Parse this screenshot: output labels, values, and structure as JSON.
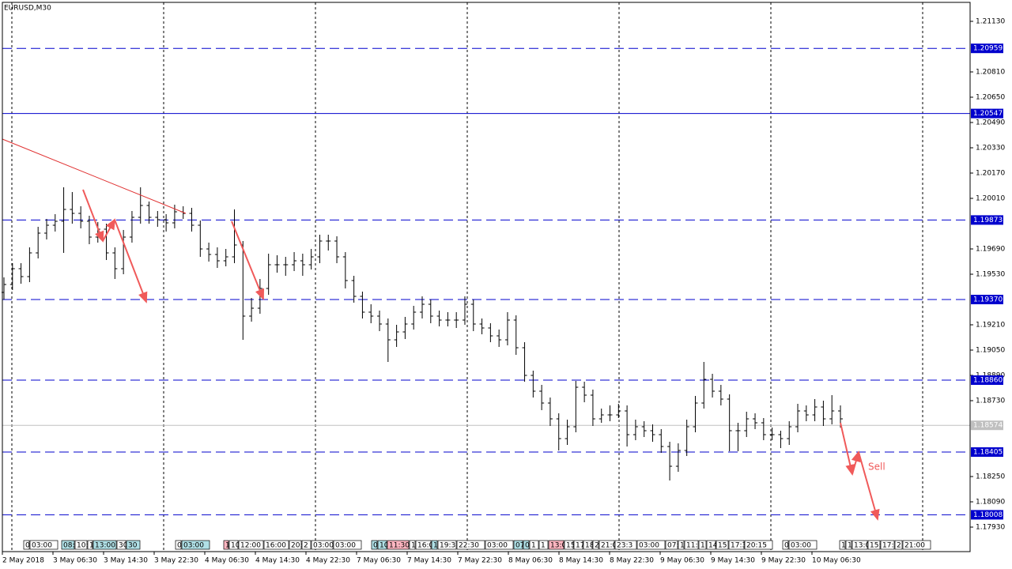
{
  "chart_data": {
    "type": "ohlc",
    "title": "EURUSD,M30",
    "ylim": [
      1.17775,
      1.2125
    ],
    "yticks": [
      {
        "value": 1.2113,
        "label": "1.21130"
      },
      {
        "value": 1.2081,
        "label": "1.20810"
      },
      {
        "value": 1.2065,
        "label": "1.20650"
      },
      {
        "value": 1.2049,
        "label": "1.20490"
      },
      {
        "value": 1.2033,
        "label": "1.20330"
      },
      {
        "value": 1.2017,
        "label": "1.20170"
      },
      {
        "value": 1.2001,
        "label": "1.20010"
      },
      {
        "value": 1.1969,
        "label": "1.19690"
      },
      {
        "value": 1.1953,
        "label": "1.19530"
      },
      {
        "value": 1.1921,
        "label": "1.19210"
      },
      {
        "value": 1.1905,
        "label": "1.19050"
      },
      {
        "value": 1.1889,
        "label": "1.18890"
      },
      {
        "value": 1.1873,
        "label": "1.18730"
      },
      {
        "value": 1.1825,
        "label": "1.18250"
      },
      {
        "value": 1.1809,
        "label": "1.18090"
      },
      {
        "value": 1.1793,
        "label": "1.17930"
      }
    ],
    "x_labels": [
      "2 May 2018",
      "3 May 06:30",
      "3 May 14:30",
      "3 May 22:30",
      "4 May 06:30",
      "4 May 14:30",
      "4 May 22:30",
      "7 May 06:30",
      "7 May 14:30",
      "7 May 22:30",
      "8 May 06:30",
      "8 May 14:30",
      "8 May 22:30",
      "9 May 06:30",
      "9 May 14:30",
      "9 May 22:30",
      "10 May 06:30"
    ],
    "grid": true,
    "bar_color": "#000000",
    "levels": [
      {
        "value": 1.20959,
        "style": "dashed"
      },
      {
        "value": 1.20547,
        "label": "1.20547",
        "style": "solid"
      },
      {
        "value": 1.19873,
        "style": "dashed"
      },
      {
        "value": 1.1937,
        "label": "1.19370",
        "style": "dashed"
      },
      {
        "value": 1.1886,
        "label": "1.18860",
        "style": "dashed"
      },
      {
        "value": 1.18405,
        "style": "dashed"
      },
      {
        "value": 1.18008,
        "style": "dashed"
      }
    ],
    "level_color": "#0000cd",
    "current_price": 1.18574,
    "annotation": "Sell",
    "tags": [
      {
        "label": "0",
        "color": "#ffffff"
      },
      {
        "label": "03:00",
        "color": "#ffffff"
      },
      {
        "label": "08:",
        "color": "#b0e0e6"
      },
      {
        "label": "10:",
        "color": "#ffffff"
      },
      {
        "label": "1",
        "color": "#ffffff"
      },
      {
        "label": "13:00",
        "color": "#b0e0e6"
      },
      {
        "label": "30",
        "color": "#ffffff"
      },
      {
        "label": "30",
        "color": "#b0e0e6"
      },
      {
        "label": "0",
        "color": "#ffffff"
      },
      {
        "label": "03:00",
        "color": "#b0e0e6"
      },
      {
        "label": "1",
        "color": "#ffb6c1"
      },
      {
        "label": "10",
        "color": "#ffffff"
      },
      {
        "label": "12:00",
        "color": "#ffffff"
      },
      {
        "label": "16:00",
        "color": "#ffffff"
      },
      {
        "label": "20:",
        "color": "#ffffff"
      },
      {
        "label": "2",
        "color": "#ffffff"
      },
      {
        "label": "03:00",
        "color": "#ffffff"
      },
      {
        "label": "03:00",
        "color": "#ffffff"
      },
      {
        "label": "0",
        "color": "#b0e0e6"
      },
      {
        "label": "10",
        "color": "#b0e0e6"
      },
      {
        "label": "11:30",
        "color": "#ffb6c1"
      },
      {
        "label": "1",
        "color": "#ffffff"
      },
      {
        "label": "16:0",
        "color": "#ffffff"
      },
      {
        "label": "1",
        "color": "#b0e0e6"
      },
      {
        "label": "19:3",
        "color": "#ffffff"
      },
      {
        "label": "22:30",
        "color": "#ffffff"
      },
      {
        "label": "03:00",
        "color": "#ffffff"
      },
      {
        "label": "07",
        "color": "#b0e0e6"
      },
      {
        "label": "0",
        "color": "#b0e0e6"
      },
      {
        "label": "1",
        "color": "#ffffff"
      },
      {
        "label": "1",
        "color": "#ffffff"
      },
      {
        "label": "13:0",
        "color": "#ffb6c1"
      },
      {
        "label": "15",
        "color": "#ffffff"
      },
      {
        "label": "17",
        "color": "#ffffff"
      },
      {
        "label": "18",
        "color": "#ffffff"
      },
      {
        "label": "2",
        "color": "#ffffff"
      },
      {
        "label": "21:0",
        "color": "#ffffff"
      },
      {
        "label": "23:3",
        "color": "#ffffff"
      },
      {
        "label": "03:00",
        "color": "#ffffff"
      },
      {
        "label": "07:",
        "color": "#ffffff"
      },
      {
        "label": "1",
        "color": "#ffffff"
      },
      {
        "label": "11:",
        "color": "#ffffff"
      },
      {
        "label": "1",
        "color": "#ffffff"
      },
      {
        "label": "14",
        "color": "#ffffff"
      },
      {
        "label": "15",
        "color": "#ffffff"
      },
      {
        "label": "17:3",
        "color": "#ffffff"
      },
      {
        "label": "20:15",
        "color": "#ffffff"
      },
      {
        "label": "0",
        "color": "#ffffff"
      },
      {
        "label": "03:00",
        "color": "#ffffff"
      },
      {
        "label": "1",
        "color": "#ffffff"
      },
      {
        "label": "1",
        "color": "#ffffff"
      },
      {
        "label": "13:0",
        "color": "#ffffff"
      },
      {
        "label": "15:",
        "color": "#ffffff"
      },
      {
        "label": "17:3",
        "color": "#ffffff"
      },
      {
        "label": "2",
        "color": "#ffffff"
      },
      {
        "label": "21:00",
        "color": "#ffffff"
      }
    ],
    "bars": [
      [
        1.19415,
        1.1951,
        1.1937,
        1.19465
      ],
      [
        1.19465,
        1.196,
        1.1943,
        1.19565
      ],
      [
        1.19565,
        1.196,
        1.1947,
        1.19515
      ],
      [
        1.19515,
        1.197,
        1.1948,
        1.19665
      ],
      [
        1.19665,
        1.1983,
        1.1963,
        1.1979
      ],
      [
        1.1979,
        1.1988,
        1.1975,
        1.1984
      ],
      [
        1.1984,
        1.1991,
        1.198,
        1.19865
      ],
      [
        1.19865,
        1.2008,
        1.19665,
        1.1994
      ],
      [
        1.1994,
        1.2005,
        1.1985,
        1.19915
      ],
      [
        1.19915,
        1.1996,
        1.1982,
        1.19865
      ],
      [
        1.19865,
        1.199,
        1.1972,
        1.19765
      ],
      [
        1.19765,
        1.1986,
        1.1973,
        1.19815
      ],
      [
        1.19815,
        1.1985,
        1.1962,
        1.19665
      ],
      [
        1.19665,
        1.197,
        1.195,
        1.19565
      ],
      [
        1.19565,
        1.1981,
        1.1953,
        1.19765
      ],
      [
        1.19765,
        1.1993,
        1.1973,
        1.1989
      ],
      [
        1.1989,
        1.2008,
        1.1985,
        1.19965
      ],
      [
        1.19965,
        1.1999,
        1.1985,
        1.1989
      ],
      [
        1.1989,
        1.1993,
        1.1983,
        1.19875
      ],
      [
        1.19875,
        1.1991,
        1.198,
        1.19855
      ],
      [
        1.19855,
        1.1997,
        1.1982,
        1.19925
      ],
      [
        1.19925,
        1.1996,
        1.1988,
        1.19915
      ],
      [
        1.19915,
        1.1995,
        1.198,
        1.1984
      ],
      [
        1.1984,
        1.1987,
        1.1964,
        1.1969
      ],
      [
        1.1969,
        1.1973,
        1.1961,
        1.19655
      ],
      [
        1.19655,
        1.197,
        1.1957,
        1.19615
      ],
      [
        1.19615,
        1.1969,
        1.1958,
        1.1964
      ],
      [
        1.1964,
        1.1994,
        1.196,
        1.19715
      ],
      [
        1.19715,
        1.1974,
        1.19115,
        1.19265
      ],
      [
        1.19265,
        1.1938,
        1.1923,
        1.19315
      ],
      [
        1.19315,
        1.195,
        1.1928,
        1.1944
      ],
      [
        1.1944,
        1.1966,
        1.194,
        1.1959
      ],
      [
        1.1959,
        1.1965,
        1.1954,
        1.1959
      ],
      [
        1.1959,
        1.1964,
        1.1952,
        1.1959
      ],
      [
        1.1959,
        1.1967,
        1.1955,
        1.19615
      ],
      [
        1.19615,
        1.1966,
        1.1952,
        1.1959
      ],
      [
        1.1959,
        1.1969,
        1.1956,
        1.1964
      ],
      [
        1.1964,
        1.1978,
        1.196,
        1.1974
      ],
      [
        1.1974,
        1.1978,
        1.1968,
        1.1974
      ],
      [
        1.1974,
        1.1977,
        1.196,
        1.1964
      ],
      [
        1.1964,
        1.1967,
        1.1944,
        1.1949
      ],
      [
        1.1949,
        1.1952,
        1.1935,
        1.1939
      ],
      [
        1.1939,
        1.1942,
        1.1925,
        1.1929
      ],
      [
        1.1929,
        1.1934,
        1.1922,
        1.19265
      ],
      [
        1.19265,
        1.193,
        1.1917,
        1.19215
      ],
      [
        1.19215,
        1.1925,
        1.18975,
        1.19115
      ],
      [
        1.19115,
        1.1921,
        1.1907,
        1.19165
      ],
      [
        1.19165,
        1.1926,
        1.1912,
        1.19215
      ],
      [
        1.19215,
        1.1933,
        1.1918,
        1.1929
      ],
      [
        1.1929,
        1.1939,
        1.1925,
        1.1934
      ],
      [
        1.1934,
        1.1937,
        1.1922,
        1.19265
      ],
      [
        1.19265,
        1.193,
        1.192,
        1.1924
      ],
      [
        1.1924,
        1.1929,
        1.192,
        1.1924
      ],
      [
        1.1924,
        1.1929,
        1.1919,
        1.1924
      ],
      [
        1.1924,
        1.1939,
        1.1921,
        1.1934
      ],
      [
        1.1934,
        1.1937,
        1.1917,
        1.19215
      ],
      [
        1.19215,
        1.1925,
        1.1915,
        1.1919
      ],
      [
        1.1919,
        1.1922,
        1.191,
        1.1914
      ],
      [
        1.1914,
        1.1918,
        1.1907,
        1.19115
      ],
      [
        1.19115,
        1.1929,
        1.1908,
        1.1924
      ],
      [
        1.1924,
        1.1927,
        1.1902,
        1.19065
      ],
      [
        1.19065,
        1.191,
        1.1885,
        1.1889
      ],
      [
        1.1889,
        1.1892,
        1.1875,
        1.1879
      ],
      [
        1.1879,
        1.1883,
        1.1867,
        1.18715
      ],
      [
        1.18715,
        1.1875,
        1.1857,
        1.18615
      ],
      [
        1.18615,
        1.1865,
        1.18415,
        1.1849
      ],
      [
        1.1849,
        1.1861,
        1.1845,
        1.18565
      ],
      [
        1.18565,
        1.18855,
        1.1853,
        1.18815
      ],
      [
        1.18815,
        1.1885,
        1.1872,
        1.18765
      ],
      [
        1.18765,
        1.188,
        1.1857,
        1.18615
      ],
      [
        1.18615,
        1.1868,
        1.1859,
        1.1864
      ],
      [
        1.1864,
        1.187,
        1.186,
        1.1864
      ],
      [
        1.1864,
        1.1871,
        1.1862,
        1.18665
      ],
      [
        1.18665,
        1.187,
        1.1844,
        1.18515
      ],
      [
        1.18515,
        1.1861,
        1.1848,
        1.18565
      ],
      [
        1.18565,
        1.186,
        1.185,
        1.1854
      ],
      [
        1.1854,
        1.1858,
        1.1847,
        1.18515
      ],
      [
        1.18515,
        1.1855,
        1.184,
        1.1844
      ],
      [
        1.1844,
        1.1847,
        1.18225,
        1.18315
      ],
      [
        1.18315,
        1.1846,
        1.1828,
        1.18415
      ],
      [
        1.18415,
        1.1861,
        1.1838,
        1.18565
      ],
      [
        1.18565,
        1.1876,
        1.1853,
        1.18715
      ],
      [
        1.18715,
        1.18975,
        1.1868,
        1.18865
      ],
      [
        1.18865,
        1.189,
        1.1875,
        1.1879
      ],
      [
        1.1879,
        1.1883,
        1.187,
        1.1874
      ],
      [
        1.1874,
        1.1877,
        1.1841,
        1.1854
      ],
      [
        1.1854,
        1.1859,
        1.1841,
        1.1854
      ],
      [
        1.1854,
        1.1866,
        1.185,
        1.18615
      ],
      [
        1.18615,
        1.1865,
        1.1855,
        1.1859
      ],
      [
        1.1859,
        1.1862,
        1.1848,
        1.18515
      ],
      [
        1.18515,
        1.1856,
        1.1848,
        1.18515
      ],
      [
        1.18515,
        1.1854,
        1.1843,
        1.1849
      ],
      [
        1.1849,
        1.186,
        1.1845,
        1.18565
      ],
      [
        1.18565,
        1.1871,
        1.1853,
        1.18665
      ],
      [
        1.18665,
        1.187,
        1.186,
        1.1864
      ],
      [
        1.1864,
        1.1874,
        1.186,
        1.1869
      ],
      [
        1.1869,
        1.1873,
        1.1857,
        1.18615
      ],
      [
        1.18615,
        1.18765,
        1.1858,
        1.18665
      ],
      [
        1.18665,
        1.187,
        1.1856,
        1.18615
      ]
    ]
  }
}
